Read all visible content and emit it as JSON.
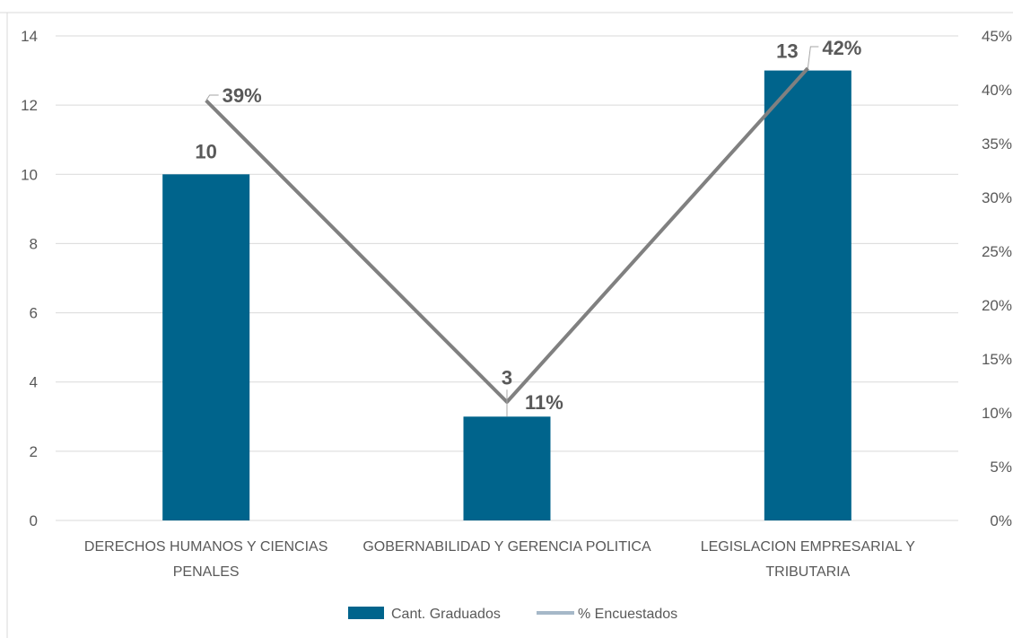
{
  "chart_data": {
    "type": "bar",
    "categories": [
      [
        "DERECHOS HUMANOS Y CIENCIAS",
        "PENALES"
      ],
      [
        "GOBERNABILIDAD Y GERENCIA POLITICA"
      ],
      [
        "LEGISLACION EMPRESARIAL Y",
        "TRIBUTARIA"
      ]
    ],
    "series": [
      {
        "name": "Cant. Graduados",
        "kind": "bar",
        "axis": "left",
        "values": [
          10,
          3,
          13
        ],
        "labels": [
          "10",
          "3",
          "13"
        ],
        "color": "#00648c"
      },
      {
        "name": "% Encuestados",
        "kind": "line",
        "axis": "right",
        "values": [
          0.39,
          0.11,
          0.42
        ],
        "labels": [
          "39%",
          "11%",
          "42%"
        ],
        "color": "#808080",
        "legend_color": "#a6b8c8"
      }
    ],
    "y_left": {
      "min": 0,
      "max": 14,
      "ticks": [
        0,
        2,
        4,
        6,
        8,
        10,
        12,
        14
      ],
      "tick_labels": [
        "0",
        "2",
        "4",
        "6",
        "8",
        "10",
        "12",
        "14"
      ]
    },
    "y_right": {
      "min": 0,
      "max": 0.45,
      "ticks": [
        0,
        0.05,
        0.1,
        0.15,
        0.2,
        0.25,
        0.3,
        0.35,
        0.4,
        0.45
      ],
      "tick_labels": [
        "0%",
        "5%",
        "10%",
        "15%",
        "20%",
        "25%",
        "30%",
        "35%",
        "40%",
        "45%"
      ]
    },
    "grid": true,
    "legend_position": "bottom",
    "title": "",
    "xlabel": "",
    "ylabel": ""
  }
}
